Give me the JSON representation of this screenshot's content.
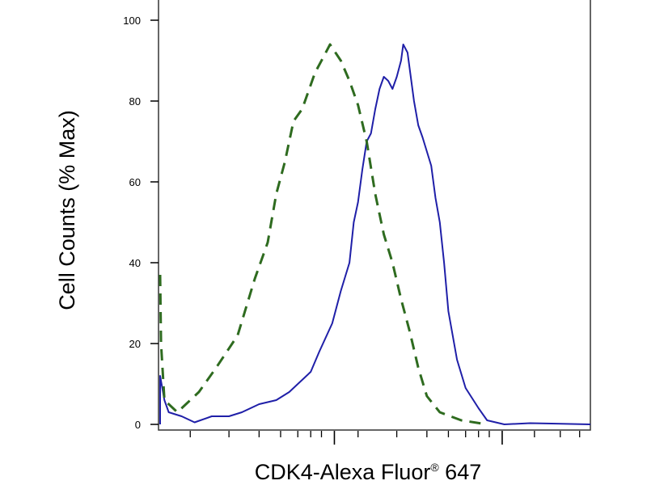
{
  "chart_data": {
    "type": "line",
    "title": "",
    "xlabel": "CDK4-Alexa Fluor",
    "xlabel_superscript": "®",
    "xlabel_suffix": " 647",
    "ylabel": "Cell Counts (% Max)",
    "xscale": "log",
    "ylim": [
      0,
      100
    ],
    "yticks": [
      "0",
      "20",
      "40",
      "60",
      "80",
      "100"
    ],
    "grid": false,
    "legend": "none",
    "series": [
      {
        "color": "#1f1fa8",
        "style": "solid",
        "points": [
          [
            0.0,
            0
          ],
          [
            0.0,
            12
          ],
          [
            0.01,
            6
          ],
          [
            0.02,
            3
          ],
          [
            0.05,
            2
          ],
          [
            0.08,
            0.5
          ],
          [
            0.12,
            2
          ],
          [
            0.16,
            2
          ],
          [
            0.19,
            3
          ],
          [
            0.23,
            5
          ],
          [
            0.27,
            6
          ],
          [
            0.3,
            8
          ],
          [
            0.33,
            11
          ],
          [
            0.35,
            13
          ],
          [
            0.37,
            18
          ],
          [
            0.4,
            25
          ],
          [
            0.42,
            33
          ],
          [
            0.44,
            40
          ],
          [
            0.45,
            50
          ],
          [
            0.46,
            55
          ],
          [
            0.47,
            63
          ],
          [
            0.48,
            70
          ],
          [
            0.49,
            72
          ],
          [
            0.5,
            78
          ],
          [
            0.51,
            83
          ],
          [
            0.52,
            86
          ],
          [
            0.53,
            85
          ],
          [
            0.54,
            83
          ],
          [
            0.55,
            86
          ],
          [
            0.56,
            90
          ],
          [
            0.565,
            94
          ],
          [
            0.575,
            92
          ],
          [
            0.59,
            80
          ],
          [
            0.6,
            74
          ],
          [
            0.61,
            71
          ],
          [
            0.63,
            64
          ],
          [
            0.64,
            56
          ],
          [
            0.65,
            50
          ],
          [
            0.66,
            40
          ],
          [
            0.67,
            28
          ],
          [
            0.69,
            16
          ],
          [
            0.71,
            9
          ],
          [
            0.74,
            4
          ],
          [
            0.76,
            1
          ],
          [
            0.8,
            0
          ],
          [
            0.86,
            0.3
          ],
          [
            0.91,
            0.2
          ],
          [
            1.0,
            0
          ]
        ]
      },
      {
        "color": "#2e6b1f",
        "style": "dashed",
        "points": [
          [
            0.0,
            37
          ],
          [
            0.002,
            20
          ],
          [
            0.01,
            6
          ],
          [
            0.04,
            3
          ],
          [
            0.09,
            8
          ],
          [
            0.13,
            14
          ],
          [
            0.18,
            22
          ],
          [
            0.22,
            36
          ],
          [
            0.25,
            45
          ],
          [
            0.27,
            57
          ],
          [
            0.29,
            65
          ],
          [
            0.31,
            75
          ],
          [
            0.33,
            78
          ],
          [
            0.35,
            84
          ],
          [
            0.36,
            87
          ],
          [
            0.38,
            91
          ],
          [
            0.395,
            94
          ],
          [
            0.42,
            90
          ],
          [
            0.44,
            85
          ],
          [
            0.46,
            79
          ],
          [
            0.48,
            70
          ],
          [
            0.5,
            57
          ],
          [
            0.52,
            47
          ],
          [
            0.54,
            40
          ],
          [
            0.56,
            31
          ],
          [
            0.58,
            23
          ],
          [
            0.6,
            14
          ],
          [
            0.62,
            7
          ],
          [
            0.65,
            3
          ],
          [
            0.7,
            1
          ],
          [
            0.76,
            0
          ]
        ]
      }
    ]
  }
}
